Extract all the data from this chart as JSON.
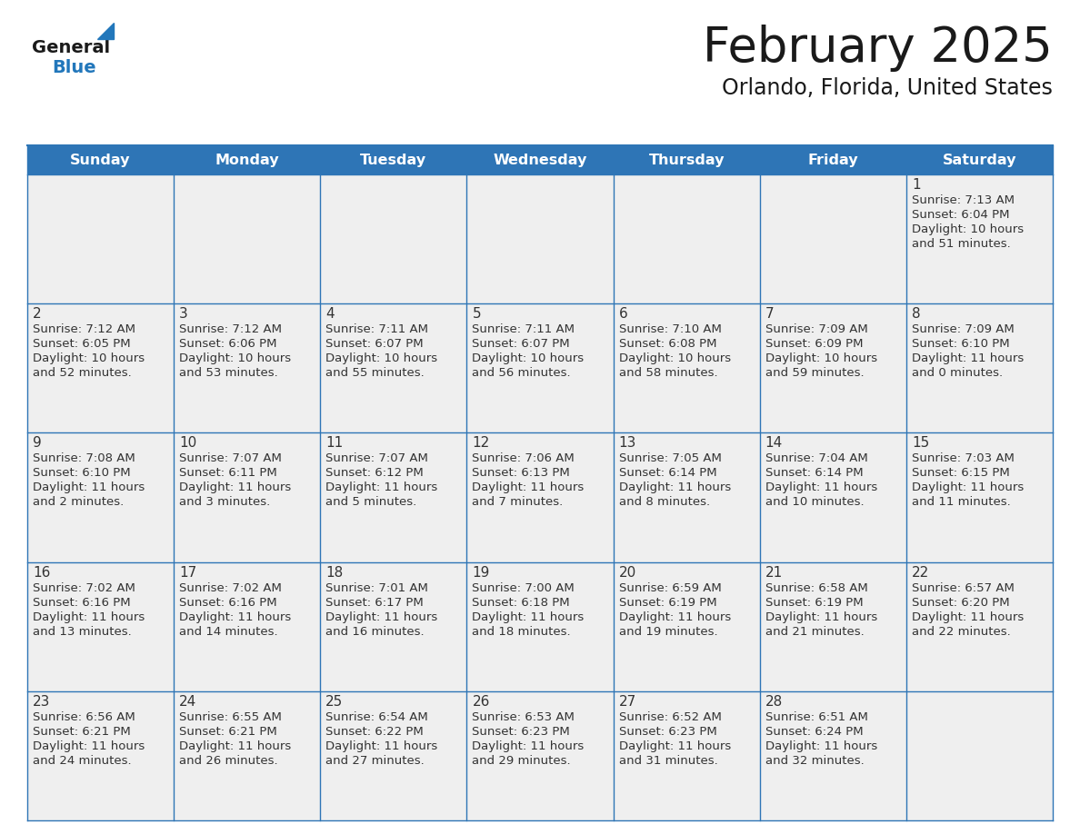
{
  "title": "February 2025",
  "subtitle": "Orlando, Florida, United States",
  "header_bg": "#2E75B6",
  "header_text_color": "#FFFFFF",
  "cell_bg": "#EFEFEF",
  "border_color": "#2E75B6",
  "day_headers": [
    "Sunday",
    "Monday",
    "Tuesday",
    "Wednesday",
    "Thursday",
    "Friday",
    "Saturday"
  ],
  "title_color": "#1A1A1A",
  "subtitle_color": "#1A1A1A",
  "day_number_color": "#333333",
  "cell_text_color": "#333333",
  "logo_general_color": "#1A1A1A",
  "logo_blue_color": "#2277BB",
  "fig_width": 11.88,
  "fig_height": 9.18,
  "dpi": 100,
  "weeks": [
    [
      {
        "day": null,
        "sunrise": null,
        "sunset": null,
        "daylight": null
      },
      {
        "day": null,
        "sunrise": null,
        "sunset": null,
        "daylight": null
      },
      {
        "day": null,
        "sunrise": null,
        "sunset": null,
        "daylight": null
      },
      {
        "day": null,
        "sunrise": null,
        "sunset": null,
        "daylight": null
      },
      {
        "day": null,
        "sunrise": null,
        "sunset": null,
        "daylight": null
      },
      {
        "day": null,
        "sunrise": null,
        "sunset": null,
        "daylight": null
      },
      {
        "day": 1,
        "sunrise": "7:13 AM",
        "sunset": "6:04 PM",
        "daylight": "10 hours and 51 minutes."
      }
    ],
    [
      {
        "day": 2,
        "sunrise": "7:12 AM",
        "sunset": "6:05 PM",
        "daylight": "10 hours and 52 minutes."
      },
      {
        "day": 3,
        "sunrise": "7:12 AM",
        "sunset": "6:06 PM",
        "daylight": "10 hours and 53 minutes."
      },
      {
        "day": 4,
        "sunrise": "7:11 AM",
        "sunset": "6:07 PM",
        "daylight": "10 hours and 55 minutes."
      },
      {
        "day": 5,
        "sunrise": "7:11 AM",
        "sunset": "6:07 PM",
        "daylight": "10 hours and 56 minutes."
      },
      {
        "day": 6,
        "sunrise": "7:10 AM",
        "sunset": "6:08 PM",
        "daylight": "10 hours and 58 minutes."
      },
      {
        "day": 7,
        "sunrise": "7:09 AM",
        "sunset": "6:09 PM",
        "daylight": "10 hours and 59 minutes."
      },
      {
        "day": 8,
        "sunrise": "7:09 AM",
        "sunset": "6:10 PM",
        "daylight": "11 hours and 0 minutes."
      }
    ],
    [
      {
        "day": 9,
        "sunrise": "7:08 AM",
        "sunset": "6:10 PM",
        "daylight": "11 hours and 2 minutes."
      },
      {
        "day": 10,
        "sunrise": "7:07 AM",
        "sunset": "6:11 PM",
        "daylight": "11 hours and 3 minutes."
      },
      {
        "day": 11,
        "sunrise": "7:07 AM",
        "sunset": "6:12 PM",
        "daylight": "11 hours and 5 minutes."
      },
      {
        "day": 12,
        "sunrise": "7:06 AM",
        "sunset": "6:13 PM",
        "daylight": "11 hours and 7 minutes."
      },
      {
        "day": 13,
        "sunrise": "7:05 AM",
        "sunset": "6:14 PM",
        "daylight": "11 hours and 8 minutes."
      },
      {
        "day": 14,
        "sunrise": "7:04 AM",
        "sunset": "6:14 PM",
        "daylight": "11 hours and 10 minutes."
      },
      {
        "day": 15,
        "sunrise": "7:03 AM",
        "sunset": "6:15 PM",
        "daylight": "11 hours and 11 minutes."
      }
    ],
    [
      {
        "day": 16,
        "sunrise": "7:02 AM",
        "sunset": "6:16 PM",
        "daylight": "11 hours and 13 minutes."
      },
      {
        "day": 17,
        "sunrise": "7:02 AM",
        "sunset": "6:16 PM",
        "daylight": "11 hours and 14 minutes."
      },
      {
        "day": 18,
        "sunrise": "7:01 AM",
        "sunset": "6:17 PM",
        "daylight": "11 hours and 16 minutes."
      },
      {
        "day": 19,
        "sunrise": "7:00 AM",
        "sunset": "6:18 PM",
        "daylight": "11 hours and 18 minutes."
      },
      {
        "day": 20,
        "sunrise": "6:59 AM",
        "sunset": "6:19 PM",
        "daylight": "11 hours and 19 minutes."
      },
      {
        "day": 21,
        "sunrise": "6:58 AM",
        "sunset": "6:19 PM",
        "daylight": "11 hours and 21 minutes."
      },
      {
        "day": 22,
        "sunrise": "6:57 AM",
        "sunset": "6:20 PM",
        "daylight": "11 hours and 22 minutes."
      }
    ],
    [
      {
        "day": 23,
        "sunrise": "6:56 AM",
        "sunset": "6:21 PM",
        "daylight": "11 hours and 24 minutes."
      },
      {
        "day": 24,
        "sunrise": "6:55 AM",
        "sunset": "6:21 PM",
        "daylight": "11 hours and 26 minutes."
      },
      {
        "day": 25,
        "sunrise": "6:54 AM",
        "sunset": "6:22 PM",
        "daylight": "11 hours and 27 minutes."
      },
      {
        "day": 26,
        "sunrise": "6:53 AM",
        "sunset": "6:23 PM",
        "daylight": "11 hours and 29 minutes."
      },
      {
        "day": 27,
        "sunrise": "6:52 AM",
        "sunset": "6:23 PM",
        "daylight": "11 hours and 31 minutes."
      },
      {
        "day": 28,
        "sunrise": "6:51 AM",
        "sunset": "6:24 PM",
        "daylight": "11 hours and 32 minutes."
      },
      {
        "day": null,
        "sunrise": null,
        "sunset": null,
        "daylight": null
      }
    ]
  ]
}
